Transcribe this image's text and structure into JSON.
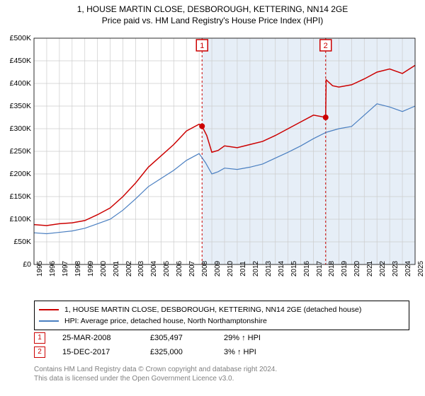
{
  "title_line1": "1, HOUSE MARTIN CLOSE, DESBOROUGH, KETTERING, NN14 2GE",
  "title_line2": "Price paid vs. HM Land Registry's House Price Index (HPI)",
  "chart": {
    "type": "line",
    "background_color": "#ffffff",
    "grid_color": "#cccccc",
    "marker_line_color": "#cc0000",
    "marker_dot_color": "#cc0000",
    "marker_fill_start_color": "#e6eef7",
    "series": [
      {
        "name": "price_paid",
        "color": "#cc0000",
        "width": 1.5
      },
      {
        "name": "hpi",
        "color": "#4a7fc1",
        "width": 1.2
      }
    ],
    "ylim": [
      0,
      500000
    ],
    "ytick_step": 50000,
    "yticks": [
      "£0",
      "£50K",
      "£100K",
      "£150K",
      "£200K",
      "£250K",
      "£300K",
      "£350K",
      "£400K",
      "£450K",
      "£500K"
    ],
    "xlim": [
      1995,
      2025
    ],
    "xticks": [
      1995,
      1996,
      1997,
      1998,
      1999,
      2000,
      2001,
      2002,
      2003,
      2004,
      2005,
      2006,
      2007,
      2008,
      2009,
      2010,
      2011,
      2012,
      2013,
      2014,
      2015,
      2016,
      2017,
      2018,
      2019,
      2020,
      2021,
      2022,
      2023,
      2024,
      2025
    ],
    "marker_positions": [
      2008.23,
      2017.96
    ],
    "marker_values": [
      305497,
      325000
    ],
    "series_data": {
      "price_paid": [
        [
          1995,
          88000
        ],
        [
          1996,
          86000
        ],
        [
          1997,
          90000
        ],
        [
          1998,
          92000
        ],
        [
          1999,
          97000
        ],
        [
          2000,
          110000
        ],
        [
          2001,
          125000
        ],
        [
          2002,
          150000
        ],
        [
          2003,
          180000
        ],
        [
          2004,
          215000
        ],
        [
          2005,
          240000
        ],
        [
          2006,
          265000
        ],
        [
          2007,
          295000
        ],
        [
          2008,
          310000
        ],
        [
          2008.23,
          305497
        ],
        [
          2008.6,
          285000
        ],
        [
          2009,
          248000
        ],
        [
          2009.5,
          252000
        ],
        [
          2010,
          262000
        ],
        [
          2011,
          258000
        ],
        [
          2012,
          265000
        ],
        [
          2013,
          272000
        ],
        [
          2014,
          285000
        ],
        [
          2015,
          300000
        ],
        [
          2016,
          315000
        ],
        [
          2017,
          330000
        ],
        [
          2017.96,
          325000
        ],
        [
          2018,
          408000
        ],
        [
          2018.5,
          395000
        ],
        [
          2019,
          392000
        ],
        [
          2020,
          397000
        ],
        [
          2021,
          410000
        ],
        [
          2022,
          425000
        ],
        [
          2023,
          432000
        ],
        [
          2024,
          422000
        ],
        [
          2025,
          440000
        ]
      ],
      "hpi": [
        [
          1995,
          70000
        ],
        [
          1996,
          68000
        ],
        [
          1997,
          71000
        ],
        [
          1998,
          74000
        ],
        [
          1999,
          80000
        ],
        [
          2000,
          90000
        ],
        [
          2001,
          100000
        ],
        [
          2002,
          120000
        ],
        [
          2003,
          145000
        ],
        [
          2004,
          172000
        ],
        [
          2005,
          190000
        ],
        [
          2006,
          208000
        ],
        [
          2007,
          230000
        ],
        [
          2008,
          245000
        ],
        [
          2008.5,
          225000
        ],
        [
          2009,
          200000
        ],
        [
          2009.5,
          205000
        ],
        [
          2010,
          213000
        ],
        [
          2011,
          210000
        ],
        [
          2012,
          215000
        ],
        [
          2013,
          222000
        ],
        [
          2014,
          235000
        ],
        [
          2015,
          248000
        ],
        [
          2016,
          262000
        ],
        [
          2017,
          278000
        ],
        [
          2018,
          292000
        ],
        [
          2019,
          300000
        ],
        [
          2020,
          305000
        ],
        [
          2021,
          330000
        ],
        [
          2022,
          355000
        ],
        [
          2023,
          348000
        ],
        [
          2024,
          338000
        ],
        [
          2025,
          350000
        ]
      ]
    }
  },
  "legend": {
    "item1": "1, HOUSE MARTIN CLOSE, DESBOROUGH, KETTERING, NN14 2GE (detached house)",
    "item2": "HPI: Average price, detached house, North Northamptonshire"
  },
  "markers": [
    {
      "badge": "1",
      "date": "25-MAR-2008",
      "price": "£305,497",
      "diff": "29% ↑ HPI"
    },
    {
      "badge": "2",
      "date": "15-DEC-2017",
      "price": "£325,000",
      "diff": "3% ↑ HPI"
    }
  ],
  "footer_line1": "Contains HM Land Registry data © Crown copyright and database right 2024.",
  "footer_line2": "This data is licensed under the Open Government Licence v3.0."
}
